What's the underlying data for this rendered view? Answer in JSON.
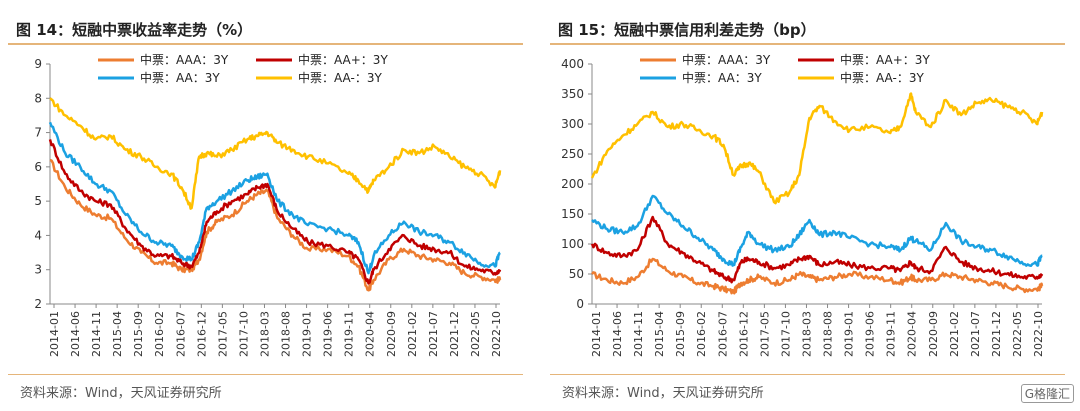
{
  "watermark": "G格隆汇",
  "panels": [
    {
      "title": "图 14：短融中票收益率走势（%）",
      "source": "资料来源：Wind，天风证券研究所",
      "chart_data": {
        "type": "line",
        "ylim": [
          2,
          9
        ],
        "yticks": [
          2,
          3,
          4,
          5,
          6,
          7,
          8,
          9
        ],
        "xlim": [
          2014.0,
          2022.9
        ],
        "xtick_labels": [
          "2014-01",
          "2014-06",
          "2014-11",
          "2015-04",
          "2015-09",
          "2016-02",
          "2016-07",
          "2016-12",
          "2017-05",
          "2017-10",
          "2018-03",
          "2018-08",
          "2019-01",
          "2019-06",
          "2019-11",
          "2020-04",
          "2020-09",
          "2021-02",
          "2021-07",
          "2021-12",
          "2022-05",
          "2022-10"
        ],
        "legend": [
          "中票：AAA：3Y",
          "中票：AA+：3Y",
          "中票：AA：3Y",
          "中票：AA-：3Y"
        ],
        "series": [
          {
            "name": "中票：AAA：3Y",
            "color": "#ed7d31",
            "x": [
              2014.0,
              2014.3,
              2014.6,
              2014.9,
              2015.2,
              2015.5,
              2015.8,
              2016.1,
              2016.4,
              2016.6,
              2016.8,
              2016.95,
              2017.1,
              2017.3,
              2017.6,
              2017.9,
              2018.1,
              2018.3,
              2018.5,
              2018.8,
              2019.1,
              2019.5,
              2019.9,
              2020.1,
              2020.3,
              2020.4,
              2020.7,
              2021.0,
              2021.3,
              2021.6,
              2021.9,
              2022.2,
              2022.5,
              2022.8,
              2022.9
            ],
            "y": [
              6.2,
              5.4,
              4.9,
              4.6,
              4.5,
              3.9,
              3.5,
              3.2,
              3.2,
              3.0,
              3.0,
              3.3,
              4.1,
              4.4,
              4.6,
              5.0,
              5.2,
              5.3,
              4.5,
              4.0,
              3.6,
              3.6,
              3.4,
              3.1,
              2.4,
              2.7,
              3.3,
              3.6,
              3.4,
              3.3,
              3.2,
              2.9,
              2.8,
              2.7,
              2.7
            ]
          },
          {
            "name": "中票：AA+：3Y",
            "color": "#c00000",
            "x": [
              2014.0,
              2014.3,
              2014.6,
              2014.9,
              2015.2,
              2015.5,
              2015.8,
              2016.1,
              2016.4,
              2016.6,
              2016.8,
              2016.95,
              2017.1,
              2017.3,
              2017.6,
              2017.9,
              2018.1,
              2018.3,
              2018.5,
              2018.8,
              2019.1,
              2019.5,
              2019.9,
              2020.1,
              2020.3,
              2020.4,
              2020.7,
              2021.0,
              2021.3,
              2021.6,
              2021.9,
              2022.2,
              2022.5,
              2022.8,
              2022.9
            ],
            "y": [
              6.8,
              5.8,
              5.3,
              5.0,
              4.9,
              4.2,
              3.7,
              3.4,
              3.4,
              3.2,
              3.1,
              3.5,
              4.4,
              4.7,
              5.0,
              5.2,
              5.4,
              5.5,
              4.7,
              4.2,
              3.8,
              3.7,
              3.5,
              3.3,
              2.6,
              3.0,
              3.6,
              4.0,
              3.7,
              3.6,
              3.5,
              3.1,
              3.0,
              2.9,
              3.0
            ]
          },
          {
            "name": "中票：AA：3Y",
            "color": "#1ba1e2",
            "x": [
              2014.0,
              2014.3,
              2014.6,
              2014.9,
              2015.2,
              2015.5,
              2015.8,
              2016.1,
              2016.4,
              2016.6,
              2016.8,
              2016.95,
              2017.1,
              2017.3,
              2017.6,
              2017.9,
              2018.1,
              2018.3,
              2018.5,
              2018.8,
              2019.1,
              2019.5,
              2019.9,
              2020.1,
              2020.3,
              2020.4,
              2020.7,
              2021.0,
              2021.3,
              2021.6,
              2021.9,
              2022.2,
              2022.5,
              2022.8,
              2022.9
            ],
            "y": [
              7.3,
              6.4,
              6.0,
              5.5,
              5.3,
              4.6,
              4.1,
              3.8,
              3.7,
              3.4,
              3.3,
              3.8,
              4.8,
              5.0,
              5.3,
              5.6,
              5.7,
              5.8,
              5.0,
              4.6,
              4.3,
              4.2,
              4.0,
              3.8,
              2.9,
              3.4,
              4.0,
              4.4,
              4.1,
              4.0,
              3.8,
              3.5,
              3.2,
              3.1,
              3.5
            ]
          },
          {
            "name": "中票：AA-：3Y",
            "color": "#ffc000",
            "x": [
              2014.0,
              2014.3,
              2014.6,
              2014.9,
              2015.2,
              2015.5,
              2015.8,
              2016.1,
              2016.4,
              2016.6,
              2016.8,
              2016.95,
              2017.1,
              2017.3,
              2017.6,
              2017.9,
              2018.1,
              2018.3,
              2018.5,
              2018.8,
              2019.1,
              2019.5,
              2019.9,
              2020.1,
              2020.3,
              2020.4,
              2020.7,
              2021.0,
              2021.3,
              2021.6,
              2021.9,
              2022.2,
              2022.5,
              2022.8,
              2022.9
            ],
            "y": [
              8.0,
              7.5,
              7.2,
              6.8,
              6.9,
              6.5,
              6.3,
              6.0,
              5.8,
              5.4,
              4.8,
              6.3,
              6.4,
              6.3,
              6.5,
              6.8,
              6.9,
              7.0,
              6.7,
              6.5,
              6.3,
              6.1,
              5.8,
              5.6,
              5.3,
              5.6,
              6.0,
              6.5,
              6.4,
              6.6,
              6.3,
              6.0,
              5.8,
              5.4,
              5.9
            ]
          }
        ]
      }
    },
    {
      "title": "图 15：短融中票信用利差走势（bp）",
      "source": "资料来源：Wind，天风证券研究所",
      "chart_data": {
        "type": "line",
        "ylim": [
          0,
          400
        ],
        "yticks": [
          0,
          50,
          100,
          150,
          200,
          250,
          300,
          350,
          400
        ],
        "xlim": [
          2014.0,
          2022.9
        ],
        "xtick_labels": [
          "2014-01",
          "2014-06",
          "2014-11",
          "2015-04",
          "2015-09",
          "2016-02",
          "2016-07",
          "2016-12",
          "2017-05",
          "2017-10",
          "2018-03",
          "2018-08",
          "2019-01",
          "2019-06",
          "2019-11",
          "2020-04",
          "2020-09",
          "2021-02",
          "2021-07",
          "2021-12",
          "2022-05",
          "2022-10"
        ],
        "legend": [
          "中票：AAA：3Y",
          "中票：AA+：3Y",
          "中票：AA：3Y",
          "中票：AA-：3Y"
        ],
        "series": [
          {
            "name": "中票：AAA：3Y",
            "color": "#ed7d31",
            "x": [
              2014.0,
              2014.3,
              2014.6,
              2014.9,
              2015.2,
              2015.5,
              2015.8,
              2016.1,
              2016.4,
              2016.6,
              2016.8,
              2016.95,
              2017.1,
              2017.3,
              2017.6,
              2017.9,
              2018.1,
              2018.3,
              2018.5,
              2018.8,
              2019.1,
              2019.5,
              2019.9,
              2020.1,
              2020.3,
              2020.4,
              2020.7,
              2021.0,
              2021.3,
              2021.6,
              2021.9,
              2022.2,
              2022.5,
              2022.8,
              2022.9
            ],
            "y": [
              50,
              40,
              35,
              45,
              75,
              55,
              45,
              35,
              30,
              25,
              20,
              35,
              40,
              45,
              35,
              40,
              50,
              45,
              40,
              45,
              50,
              45,
              40,
              35,
              45,
              40,
              40,
              50,
              45,
              40,
              35,
              30,
              25,
              25,
              30
            ]
          },
          {
            "name": "中票：AA+：3Y",
            "color": "#c00000",
            "x": [
              2014.0,
              2014.3,
              2014.6,
              2014.9,
              2015.2,
              2015.5,
              2015.8,
              2016.1,
              2016.4,
              2016.6,
              2016.8,
              2016.95,
              2017.1,
              2017.3,
              2017.6,
              2017.9,
              2018.1,
              2018.3,
              2018.5,
              2018.8,
              2019.1,
              2019.5,
              2019.9,
              2020.1,
              2020.3,
              2020.4,
              2020.7,
              2021.0,
              2021.3,
              2021.6,
              2021.9,
              2022.2,
              2022.5,
              2022.8,
              2022.9
            ],
            "y": [
              100,
              85,
              80,
              90,
              145,
              100,
              85,
              70,
              55,
              45,
              40,
              70,
              75,
              70,
              60,
              65,
              75,
              80,
              65,
              70,
              65,
              60,
              60,
              55,
              70,
              60,
              55,
              95,
              70,
              60,
              55,
              50,
              45,
              45,
              50
            ]
          },
          {
            "name": "中票：AA：3Y",
            "color": "#1ba1e2",
            "x": [
              2014.0,
              2014.3,
              2014.6,
              2014.9,
              2015.2,
              2015.5,
              2015.8,
              2016.1,
              2016.4,
              2016.6,
              2016.8,
              2016.95,
              2017.1,
              2017.3,
              2017.6,
              2017.9,
              2018.1,
              2018.3,
              2018.5,
              2018.8,
              2019.1,
              2019.5,
              2019.9,
              2020.1,
              2020.3,
              2020.4,
              2020.7,
              2021.0,
              2021.3,
              2021.6,
              2021.9,
              2022.2,
              2022.5,
              2022.8,
              2022.9
            ],
            "y": [
              140,
              125,
              120,
              130,
              180,
              150,
              130,
              110,
              90,
              75,
              65,
              95,
              120,
              100,
              90,
              95,
              115,
              140,
              115,
              120,
              110,
              100,
              95,
              90,
              110,
              105,
              90,
              135,
              105,
              95,
              90,
              80,
              70,
              65,
              80
            ]
          },
          {
            "name": "中票：AA-：3Y",
            "color": "#ffc000",
            "x": [
              2014.0,
              2014.3,
              2014.6,
              2014.9,
              2015.2,
              2015.5,
              2015.8,
              2016.1,
              2016.4,
              2016.6,
              2016.8,
              2016.95,
              2017.1,
              2017.3,
              2017.6,
              2017.9,
              2018.1,
              2018.3,
              2018.5,
              2018.8,
              2019.1,
              2019.5,
              2019.9,
              2020.1,
              2020.3,
              2020.4,
              2020.7,
              2021.0,
              2021.3,
              2021.6,
              2021.9,
              2022.2,
              2022.5,
              2022.8,
              2022.9
            ],
            "y": [
              210,
              255,
              280,
              300,
              320,
              295,
              300,
              290,
              280,
              265,
              215,
              230,
              235,
              220,
              170,
              185,
              215,
              310,
              330,
              305,
              290,
              295,
              285,
              295,
              350,
              320,
              295,
              340,
              315,
              335,
              340,
              330,
              320,
              300,
              320
            ]
          }
        ]
      }
    }
  ]
}
